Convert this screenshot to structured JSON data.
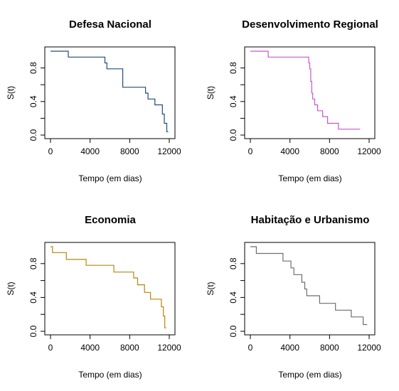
{
  "chart_data": [
    {
      "type": "line",
      "title": "Defesa Nacional",
      "xlabel": "Tempo (em dias)",
      "ylabel": "S(t)",
      "xlim": [
        0,
        12000
      ],
      "ylim": [
        0,
        1
      ],
      "x_ticks": [
        "0",
        "4000",
        "8000",
        "12000"
      ],
      "y_ticks": [
        "0.0",
        "0.4",
        "0.8"
      ],
      "color": "#1f4e79",
      "series": [
        {
          "x": [
            0,
            1800,
            1800,
            5500,
            5500,
            5700,
            5700,
            7300,
            7300,
            9600,
            9600,
            9850,
            9850,
            10550,
            10550,
            11300,
            11300,
            11500,
            11500,
            11750,
            11750,
            11900
          ],
          "y": [
            1.0,
            1.0,
            0.93,
            0.93,
            0.86,
            0.86,
            0.79,
            0.79,
            0.57,
            0.57,
            0.5,
            0.5,
            0.43,
            0.43,
            0.36,
            0.36,
            0.25,
            0.25,
            0.14,
            0.14,
            0.04,
            0.04
          ]
        }
      ]
    },
    {
      "type": "line",
      "title": "Desenvolvimento Regional",
      "xlabel": "Tempo (em dias)",
      "ylabel": "S(t)",
      "xlim": [
        0,
        12000
      ],
      "ylim": [
        0,
        1
      ],
      "x_ticks": [
        "0",
        "4000",
        "8000",
        "12000"
      ],
      "y_ticks": [
        "0.0",
        "0.4",
        "0.8"
      ],
      "color": "#cc55cc",
      "series": [
        {
          "x": [
            0,
            1800,
            1800,
            5900,
            5900,
            6000,
            6000,
            6100,
            6100,
            6200,
            6200,
            6300,
            6300,
            6500,
            6500,
            6800,
            6800,
            7300,
            7300,
            7800,
            7800,
            8900,
            8900,
            11100
          ],
          "y": [
            1.0,
            1.0,
            0.93,
            0.93,
            0.86,
            0.86,
            0.79,
            0.79,
            0.64,
            0.64,
            0.5,
            0.5,
            0.43,
            0.43,
            0.36,
            0.36,
            0.29,
            0.29,
            0.22,
            0.22,
            0.14,
            0.14,
            0.07,
            0.07
          ]
        }
      ]
    },
    {
      "type": "line",
      "title": "Economia",
      "xlabel": "Tempo (em dias)",
      "ylabel": "S(t)",
      "xlim": [
        0,
        12000
      ],
      "ylim": [
        0,
        1
      ],
      "x_ticks": [
        "0",
        "4000",
        "8000",
        "12000"
      ],
      "y_ticks": [
        "0.0",
        "0.4",
        "0.8"
      ],
      "color": "#b8860b",
      "series": [
        {
          "x": [
            0,
            200,
            200,
            1600,
            1600,
            3600,
            3600,
            6400,
            6400,
            8400,
            8400,
            8800,
            8800,
            9500,
            9500,
            10100,
            10100,
            11200,
            11200,
            11400,
            11400,
            11550,
            11550,
            11700
          ],
          "y": [
            1.0,
            1.0,
            0.93,
            0.93,
            0.85,
            0.85,
            0.78,
            0.78,
            0.7,
            0.7,
            0.63,
            0.63,
            0.55,
            0.55,
            0.46,
            0.46,
            0.38,
            0.38,
            0.29,
            0.29,
            0.18,
            0.18,
            0.04,
            0.04
          ]
        }
      ]
    },
    {
      "type": "line",
      "title": "Habitação e Urbanismo",
      "xlabel": "Tempo (em dias)",
      "ylabel": "S(t)",
      "xlim": [
        0,
        12000
      ],
      "ylim": [
        0,
        1
      ],
      "x_ticks": [
        "0",
        "4000",
        "8000",
        "12000"
      ],
      "y_ticks": [
        "0.0",
        "0.4",
        "0.8"
      ],
      "color": "#6e6e6e",
      "series": [
        {
          "x": [
            0,
            600,
            600,
            3300,
            3300,
            4100,
            4100,
            4400,
            4400,
            5200,
            5200,
            5500,
            5500,
            5700,
            5700,
            7000,
            7000,
            8600,
            8600,
            10200,
            10200,
            11400,
            11400,
            11800
          ],
          "y": [
            1.0,
            1.0,
            0.92,
            0.92,
            0.83,
            0.83,
            0.75,
            0.75,
            0.67,
            0.67,
            0.58,
            0.58,
            0.5,
            0.5,
            0.42,
            0.42,
            0.33,
            0.33,
            0.25,
            0.25,
            0.17,
            0.17,
            0.08,
            0.08
          ]
        }
      ]
    }
  ]
}
